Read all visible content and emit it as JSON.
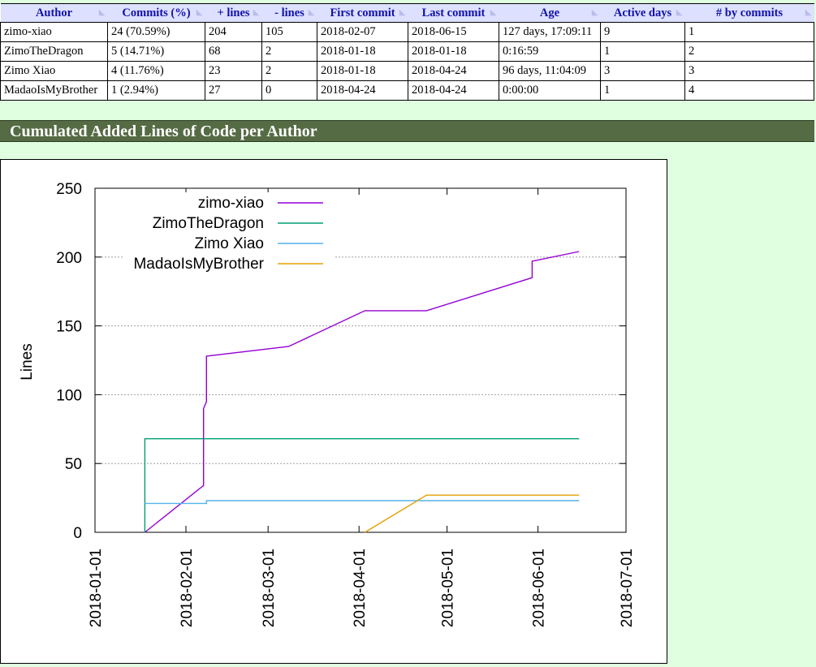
{
  "table": {
    "headers": [
      "Author",
      "Commits (%)",
      "+ lines",
      "- lines",
      "First commit",
      "Last commit",
      "Age",
      "Active days",
      "# by commits"
    ],
    "rows": [
      [
        "zimo-xiao",
        "24 (70.59%)",
        "204",
        "105",
        "2018-02-07",
        "2018-06-15",
        "127 days, 17:09:11",
        "9",
        "1"
      ],
      [
        "ZimoTheDragon",
        "5 (14.71%)",
        "68",
        "2",
        "2018-01-18",
        "2018-01-18",
        "0:16:59",
        "1",
        "2"
      ],
      [
        "Zimo Xiao",
        "4 (11.76%)",
        "23",
        "2",
        "2018-01-18",
        "2018-04-24",
        "96 days, 11:04:09",
        "3",
        "3"
      ],
      [
        "MadaoIsMyBrother",
        "1 (2.94%)",
        "27",
        "0",
        "2018-04-24",
        "2018-04-24",
        "0:00:00",
        "1",
        "4"
      ]
    ]
  },
  "section_title": "Cumulated Added Lines of Code per Author",
  "chart_data": {
    "type": "line",
    "title": "",
    "xlabel": "",
    "ylabel": "Lines",
    "xlim": [
      "2018-01-01",
      "2018-07-01"
    ],
    "ylim": [
      0,
      250
    ],
    "x_ticks": [
      "2018-01-01",
      "2018-02-01",
      "2018-03-01",
      "2018-04-01",
      "2018-05-01",
      "2018-06-01",
      "2018-07-01"
    ],
    "y_ticks": [
      0,
      50,
      100,
      150,
      200,
      250
    ],
    "grid": true,
    "legend": "top-left",
    "series": [
      {
        "name": "zimo-xiao",
        "color": "#9400d3",
        "points": [
          [
            "2018-01-18",
            0
          ],
          [
            "2018-02-07",
            34
          ],
          [
            "2018-02-07",
            90
          ],
          [
            "2018-02-08",
            95
          ],
          [
            "2018-02-08",
            128
          ],
          [
            "2018-03-08",
            135
          ],
          [
            "2018-04-03",
            161
          ],
          [
            "2018-04-24",
            161
          ],
          [
            "2018-05-30",
            185
          ],
          [
            "2018-05-30",
            197
          ],
          [
            "2018-06-15",
            204
          ]
        ]
      },
      {
        "name": "ZimoTheDragon",
        "color": "#009e73",
        "points": [
          [
            "2018-01-18",
            0
          ],
          [
            "2018-01-18",
            68
          ],
          [
            "2018-06-15",
            68
          ]
        ]
      },
      {
        "name": "Zimo Xiao",
        "color": "#56b4e9",
        "points": [
          [
            "2018-01-18",
            21
          ],
          [
            "2018-02-08",
            21
          ],
          [
            "2018-02-08",
            23
          ],
          [
            "2018-06-15",
            23
          ]
        ]
      },
      {
        "name": "MadaoIsMyBrother",
        "color": "#e69f00",
        "points": [
          [
            "2018-04-03",
            0
          ],
          [
            "2018-04-24",
            27
          ],
          [
            "2018-06-15",
            27
          ]
        ]
      }
    ]
  }
}
